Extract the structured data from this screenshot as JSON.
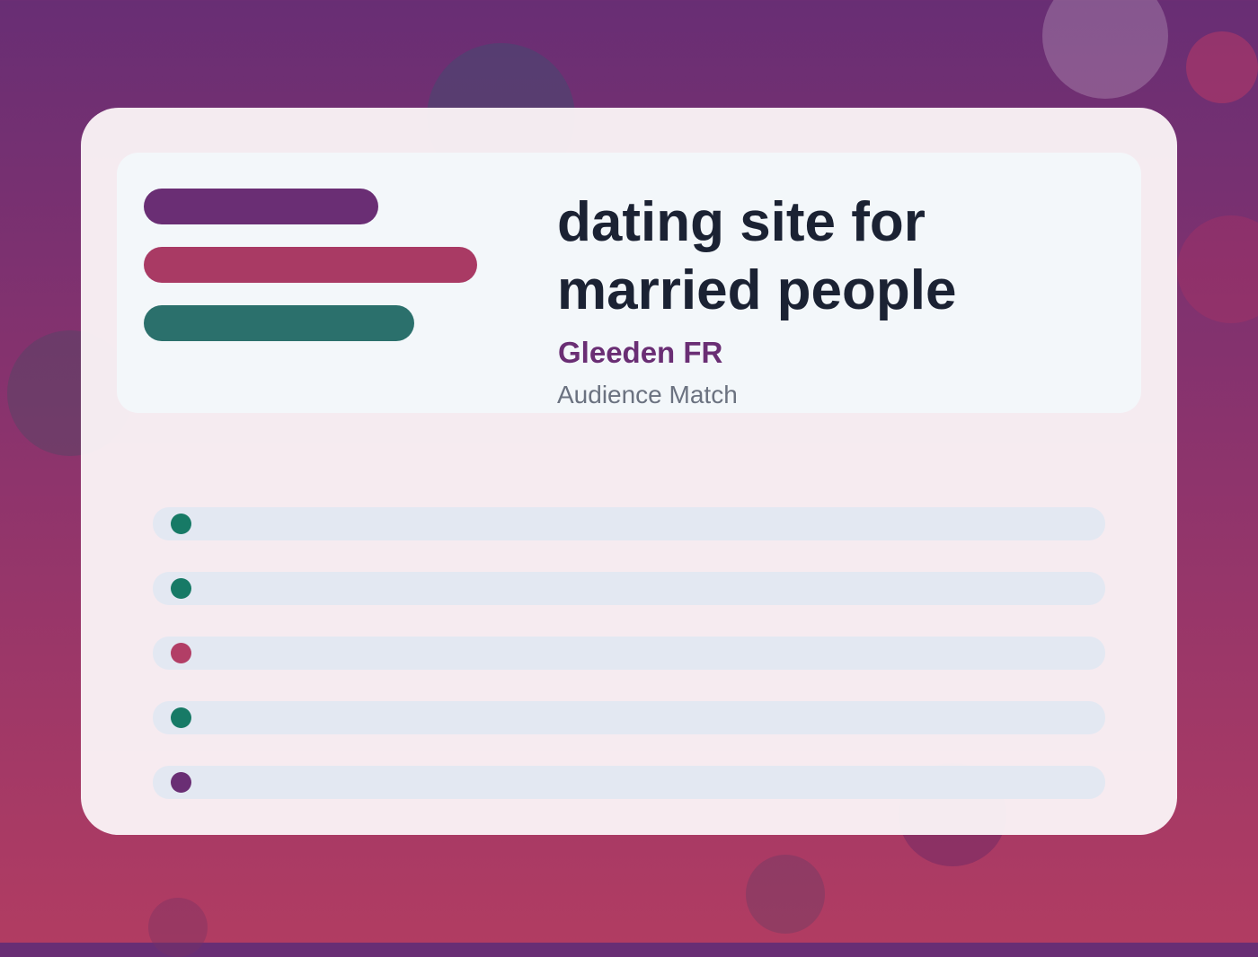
{
  "header": {
    "title": "dating site for married people",
    "brand": "Gleeden FR",
    "subtitle": "Audience Match"
  }
}
